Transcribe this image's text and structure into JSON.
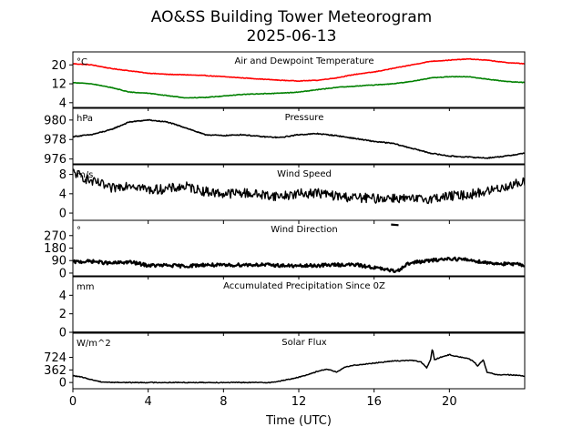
{
  "chart_data": {
    "type": "line",
    "title": "AO&SS Building Tower Meteorogram",
    "subtitle": "2025-06-13",
    "xlabel": "Time (UTC)",
    "xlim": [
      0,
      24
    ],
    "xticks": [
      0,
      4,
      8,
      12,
      16,
      20
    ],
    "xtick_labels": [
      "0",
      "4",
      "8",
      "12",
      "16",
      "20"
    ],
    "panels": [
      {
        "id": "temperature",
        "title": "Air and Dewpoint Temperature",
        "unit": "°C",
        "ylim": [
          2,
          25.5
        ],
        "yticks": [
          4,
          12,
          20
        ],
        "ytick_labels": [
          "4",
          "12",
          "20"
        ],
        "series": [
          {
            "name": "Air Temperature",
            "color": "#ff0000",
            "x": [
              0,
              1,
              2,
              3,
              4,
              5,
              6,
              7,
              8,
              9,
              10,
              11,
              12,
              13,
              14,
              15,
              16,
              17,
              18,
              19,
              20,
              21,
              22,
              23,
              24
            ],
            "y": [
              20.5,
              20.0,
              18.5,
              17.5,
              16.5,
              16.0,
              15.8,
              15.5,
              15.0,
              14.5,
              14.0,
              13.5,
              13.2,
              13.5,
              14.5,
              16.0,
              17.0,
              18.5,
              20.0,
              21.5,
              22.0,
              22.5,
              22.0,
              21.0,
              20.5
            ]
          },
          {
            "name": "Dewpoint",
            "color": "#008000",
            "x": [
              0,
              1,
              2,
              3,
              4,
              5,
              6,
              7,
              8,
              9,
              10,
              11,
              12,
              13,
              14,
              15,
              16,
              17,
              18,
              19,
              20,
              21,
              22,
              23,
              24
            ],
            "y": [
              12.5,
              12.0,
              10.5,
              8.5,
              8.0,
              7.0,
              6.0,
              6.2,
              6.8,
              7.5,
              7.8,
              8.0,
              8.5,
              9.5,
              10.5,
              11.0,
              11.5,
              12.0,
              13.0,
              14.5,
              15.0,
              15.0,
              14.0,
              13.0,
              12.5
            ]
          }
        ]
      },
      {
        "id": "pressure",
        "title": "Pressure",
        "unit": "hPa",
        "ylim": [
          975.5,
          981.2
        ],
        "yticks": [
          976,
          978,
          980
        ],
        "ytick_labels": [
          "976",
          "978",
          "980"
        ],
        "series": [
          {
            "name": "Pressure",
            "color": "#000000",
            "x": [
              0,
              1,
              2,
              3,
              3.5,
              4,
              5,
              6,
              7,
              8,
              9,
              10,
              11,
              12,
              13,
              14,
              15,
              16,
              17,
              18,
              19,
              20,
              21,
              22,
              23,
              24
            ],
            "y": [
              978.3,
              978.5,
              979.0,
              979.8,
              979.9,
              980.0,
              979.8,
              979.2,
              978.5,
              978.4,
              978.5,
              978.3,
              978.2,
              978.5,
              978.6,
              978.4,
              978.1,
              977.8,
              977.6,
              977.1,
              976.6,
              976.3,
              976.2,
              976.1,
              976.3,
              976.6
            ]
          }
        ]
      },
      {
        "id": "wind_speed",
        "title": "Wind Speed",
        "unit": "m/s",
        "ylim": [
          -1.5,
          10
        ],
        "yticks": [
          0,
          4,
          8
        ],
        "ytick_labels": [
          "0",
          "4",
          "8"
        ],
        "series": [
          {
            "name": "Wind Speed",
            "color": "#000000",
            "x": [
              0,
              0.5,
              1,
              1.5,
              2,
              2.5,
              3,
              3.5,
              4,
              5,
              6,
              7,
              8,
              9,
              10,
              11,
              12,
              13,
              14,
              15,
              16,
              17,
              18,
              19,
              20,
              21,
              22,
              23,
              24
            ],
            "y": [
              8.5,
              7.5,
              6.5,
              6.0,
              5.0,
              5.5,
              6.0,
              5.5,
              4.8,
              5.0,
              5.5,
              4.5,
              4.0,
              4.2,
              3.8,
              3.5,
              4.0,
              4.2,
              3.5,
              3.2,
              3.0,
              3.2,
              2.8,
              3.0,
              3.5,
              3.8,
              4.5,
              5.5,
              6.5
            ]
          }
        ]
      },
      {
        "id": "wind_direction",
        "title": "Wind Direction",
        "unit": "°",
        "ylim": [
          -20,
          380
        ],
        "yticks": [
          0,
          90,
          180,
          270
        ],
        "ytick_labels": [
          "0",
          "90",
          "180",
          "270"
        ],
        "series": [
          {
            "name": "Wind Direction",
            "color": "#000000",
            "x": [
              0,
              1,
              2,
              3,
              4,
              5,
              6,
              7,
              8,
              9,
              10,
              11,
              12,
              13,
              14,
              15,
              16,
              17,
              17.3,
              17.6,
              18,
              19,
              20,
              21,
              22,
              23,
              24
            ],
            "y": [
              80,
              85,
              70,
              80,
              55,
              55,
              50,
              60,
              55,
              60,
              60,
              55,
              50,
              55,
              60,
              60,
              40,
              15,
              20,
              55,
              75,
              90,
              105,
              95,
              75,
              65,
              60
            ]
          },
          {
            "name": "Wind Direction (gap segment)",
            "color": "#000000",
            "x": [
              16.9,
              17.3
            ],
            "y": [
              350,
              345
            ]
          }
        ]
      },
      {
        "id": "precipitation",
        "title": "Accumulated Precipitation Since 0Z",
        "unit": "mm",
        "ylim": [
          0,
          6
        ],
        "yticks": [
          0,
          2,
          4
        ],
        "ytick_labels": [
          "0",
          "2",
          "4"
        ],
        "series": [
          {
            "name": "Precipitation",
            "color": "#000000",
            "x": [
              0,
              24
            ],
            "y": [
              0,
              0
            ]
          }
        ]
      },
      {
        "id": "solar_flux",
        "title": "Solar Flux",
        "unit": "W/m^2",
        "ylim": [
          -180,
          1420
        ],
        "yticks": [
          0,
          362,
          724
        ],
        "ytick_labels": [
          "0",
          "362",
          "724"
        ],
        "series": [
          {
            "name": "Solar Flux",
            "color": "#000000",
            "x": [
              0,
              0.5,
              1,
              1.5,
              2,
              3,
              4,
              5,
              6,
              7,
              8,
              9,
              10,
              10.5,
              11,
              12,
              13,
              13.5,
              14,
              14.5,
              15,
              16,
              17,
              18,
              18.5,
              18.8,
              19,
              19.1,
              19.2,
              19.5,
              20,
              20.5,
              21,
              21.3,
              21.5,
              21.8,
              22,
              22.5,
              23,
              23.5,
              24
            ],
            "y": [
              200,
              150,
              80,
              20,
              5,
              0,
              0,
              0,
              0,
              0,
              0,
              0,
              0,
              0,
              40,
              150,
              320,
              390,
              300,
              450,
              500,
              560,
              620,
              640,
              590,
              420,
              650,
              1000,
              650,
              720,
              800,
              740,
              690,
              600,
              480,
              650,
              300,
              220,
              230,
              210,
              180
            ]
          }
        ]
      }
    ]
  }
}
